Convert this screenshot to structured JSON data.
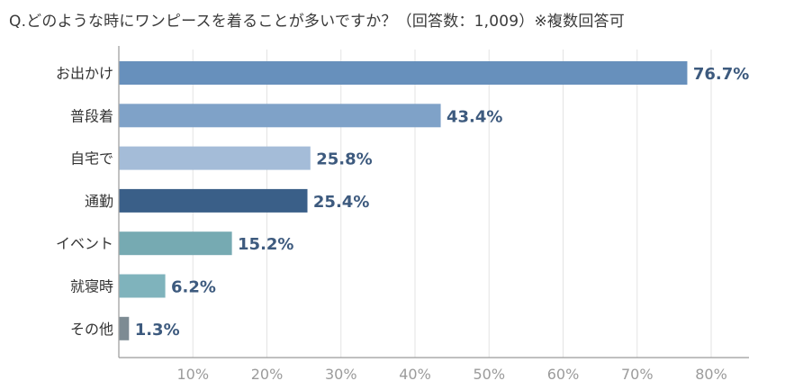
{
  "title": "Q.どのような時にワンピースを着ることが多いですか？（回答数：1,009）※複数回答可",
  "chart_data": {
    "type": "bar",
    "orientation": "horizontal",
    "title": "Q.どのような時にワンピースを着ることが多いですか？（回答数：1,009）※複数回答可",
    "categories": [
      "お出かけ",
      "普段着",
      "自宅で",
      "通勤",
      "イベント",
      "就寝時",
      "その他"
    ],
    "values": [
      76.7,
      43.4,
      25.8,
      25.4,
      15.2,
      6.2,
      1.3
    ],
    "value_labels": [
      "76.7%",
      "43.4%",
      "25.8%",
      "25.4%",
      "15.2%",
      "6.2%",
      "1.3%"
    ],
    "colors": [
      "#6790bc",
      "#7fa2c8",
      "#a4bcd8",
      "#3a5f88",
      "#76aab2",
      "#7fb3bc",
      "#7d8b93"
    ],
    "xlim": [
      0,
      80
    ],
    "x_ticks": [
      "10%",
      "20%",
      "30%",
      "40%",
      "50%",
      "60%",
      "70%",
      "80%"
    ],
    "grid": true,
    "label_color": "#3d5a7e",
    "grid_color": "#e3e3e3",
    "axis_color": "#9a9a9a"
  }
}
